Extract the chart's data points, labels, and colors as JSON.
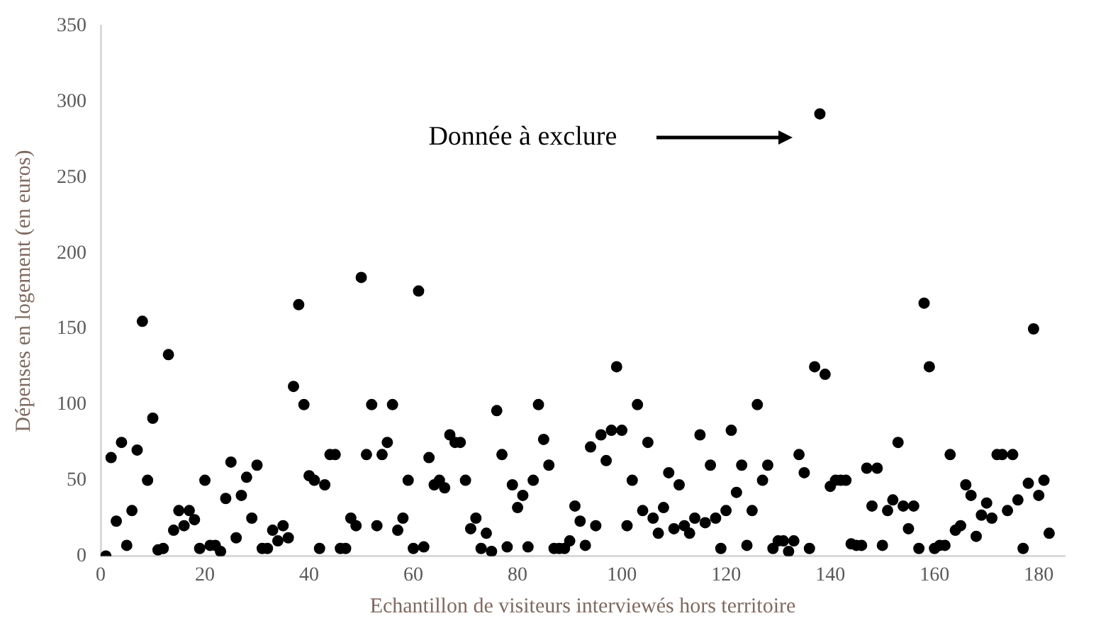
{
  "chart_data": {
    "type": "scatter",
    "xlabel": "Echantillon de visiteurs interviewés hors territoire",
    "ylabel": "Dépenses en logement (en euros)",
    "x": [
      1,
      2,
      3,
      4,
      5,
      6,
      7,
      8,
      9,
      10,
      11,
      12,
      13,
      14,
      15,
      16,
      17,
      18,
      19,
      20,
      21,
      22,
      23,
      24,
      25,
      26,
      27,
      28,
      29,
      30,
      31,
      32,
      33,
      34,
      35,
      36,
      37,
      38,
      39,
      40,
      41,
      42,
      43,
      44,
      45,
      46,
      47,
      48,
      49,
      50,
      51,
      52,
      53,
      54,
      55,
      56,
      57,
      58,
      59,
      60,
      61,
      62,
      63,
      64,
      65,
      66,
      67,
      68,
      69,
      70,
      71,
      72,
      73,
      74,
      75,
      76,
      77,
      78,
      79,
      80,
      81,
      82,
      83,
      84,
      85,
      86,
      87,
      88,
      89,
      90,
      91,
      92,
      93,
      94,
      95,
      96,
      97,
      98,
      99,
      100,
      101,
      102,
      103,
      104,
      105,
      106,
      107,
      108,
      109,
      110,
      111,
      112,
      113,
      114,
      115,
      116,
      117,
      118,
      119,
      120,
      121,
      122,
      123,
      124,
      125,
      126,
      127,
      128,
      129,
      130,
      131,
      132,
      133,
      134,
      135,
      136,
      137,
      138,
      139,
      140,
      141,
      142,
      143,
      144,
      145,
      146,
      147,
      148,
      149,
      150,
      151,
      152,
      153,
      154,
      155,
      156,
      157,
      158,
      159,
      160,
      161,
      162,
      163,
      164,
      165,
      166,
      167,
      168,
      169,
      170,
      171,
      172,
      173,
      174,
      175,
      176,
      177,
      178,
      179,
      180,
      181,
      182
    ],
    "series": [
      {
        "color": "#000000",
        "values": [
          0,
          65,
          23,
          75,
          7,
          30,
          70,
          155,
          50,
          91,
          4,
          5,
          133,
          17,
          30,
          20,
          30,
          24,
          5,
          50,
          7,
          7,
          3,
          38,
          62,
          12,
          40,
          52,
          25,
          60,
          5,
          5,
          17,
          10,
          20,
          12,
          112,
          166,
          100,
          53,
          50,
          5,
          47,
          67,
          67,
          5,
          5,
          25,
          20,
          184,
          67,
          100,
          20,
          67,
          75,
          100,
          17,
          25,
          50,
          5,
          175,
          6,
          65,
          47,
          50,
          45,
          80,
          75,
          75,
          50,
          18,
          25,
          5,
          15,
          3,
          96,
          67,
          6,
          47,
          32,
          40,
          6,
          50,
          100,
          77,
          60,
          5,
          5,
          5,
          10,
          33,
          23,
          7,
          72,
          20,
          80,
          63,
          83,
          125,
          83,
          20,
          50,
          100,
          30,
          75,
          25,
          15,
          32,
          55,
          18,
          47,
          20,
          15,
          25,
          80,
          22,
          60,
          25,
          5,
          30,
          83,
          42,
          60,
          7,
          30,
          100,
          50,
          60,
          5,
          10,
          10,
          3,
          10,
          67,
          55,
          5,
          125,
          292,
          120,
          46,
          50,
          50,
          50,
          8,
          7,
          7,
          58,
          33,
          58,
          7,
          30,
          37,
          75,
          33,
          18,
          33,
          5,
          167,
          125,
          5,
          7,
          7,
          67,
          17,
          20,
          47,
          40,
          13,
          27,
          35,
          25,
          67,
          67,
          30,
          67,
          37,
          5,
          48,
          150,
          40,
          50,
          15
        ]
      }
    ],
    "xlim": [
      0,
      185
    ],
    "xticks": [
      0,
      20,
      40,
      60,
      80,
      100,
      120,
      140,
      160,
      180
    ],
    "ylim": [
      0,
      350
    ],
    "yticks": [
      0,
      50,
      100,
      150,
      200,
      250,
      300,
      350
    ],
    "grid": false,
    "legend": false,
    "marker": "circle",
    "annotations": [
      "Donnée à exclure"
    ]
  }
}
